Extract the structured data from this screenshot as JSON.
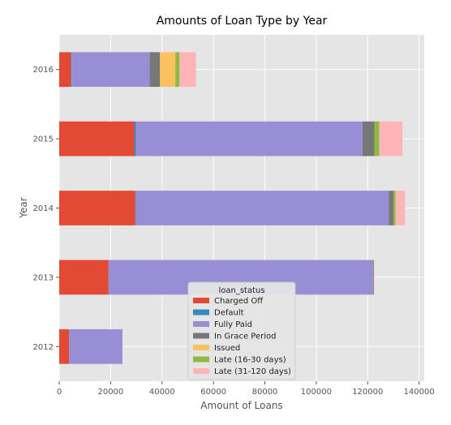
{
  "chart_data": {
    "type": "bar",
    "orientation": "horizontal",
    "stacked": true,
    "title": "Amounts of Loan Type by Year",
    "xlabel": "Amount of Loans",
    "ylabel": "Year",
    "xlim": [
      0,
      142000
    ],
    "xticks": [
      0,
      20000,
      40000,
      60000,
      80000,
      100000,
      120000,
      140000
    ],
    "grid": true,
    "categories": [
      "2012",
      "2013",
      "2014",
      "2015",
      "2016"
    ],
    "legend": {
      "title": "loan_status",
      "placement": "lower-center"
    },
    "series": [
      {
        "name": "Charged Off",
        "color": "#E24A33",
        "values": [
          3800,
          19200,
          29600,
          29200,
          4600
        ]
      },
      {
        "name": "Default",
        "color": "#348ABD",
        "values": [
          0,
          0,
          200,
          600,
          200
        ]
      },
      {
        "name": "Fully Paid",
        "color": "#988ED5",
        "values": [
          20800,
          102900,
          98400,
          88200,
          30400
        ]
      },
      {
        "name": "In Grace Period",
        "color": "#777777",
        "values": [
          0,
          200,
          1800,
          4600,
          4000
        ]
      },
      {
        "name": "Issued",
        "color": "#FBC15E",
        "values": [
          0,
          0,
          0,
          0,
          6000
        ]
      },
      {
        "name": "Late (16-30 days)",
        "color": "#8EBA42",
        "values": [
          0,
          100,
          800,
          1900,
          1600
        ]
      },
      {
        "name": "Late (31-120 days)",
        "color": "#FFB5B8",
        "values": [
          0,
          200,
          3700,
          9000,
          6400
        ]
      }
    ]
  }
}
